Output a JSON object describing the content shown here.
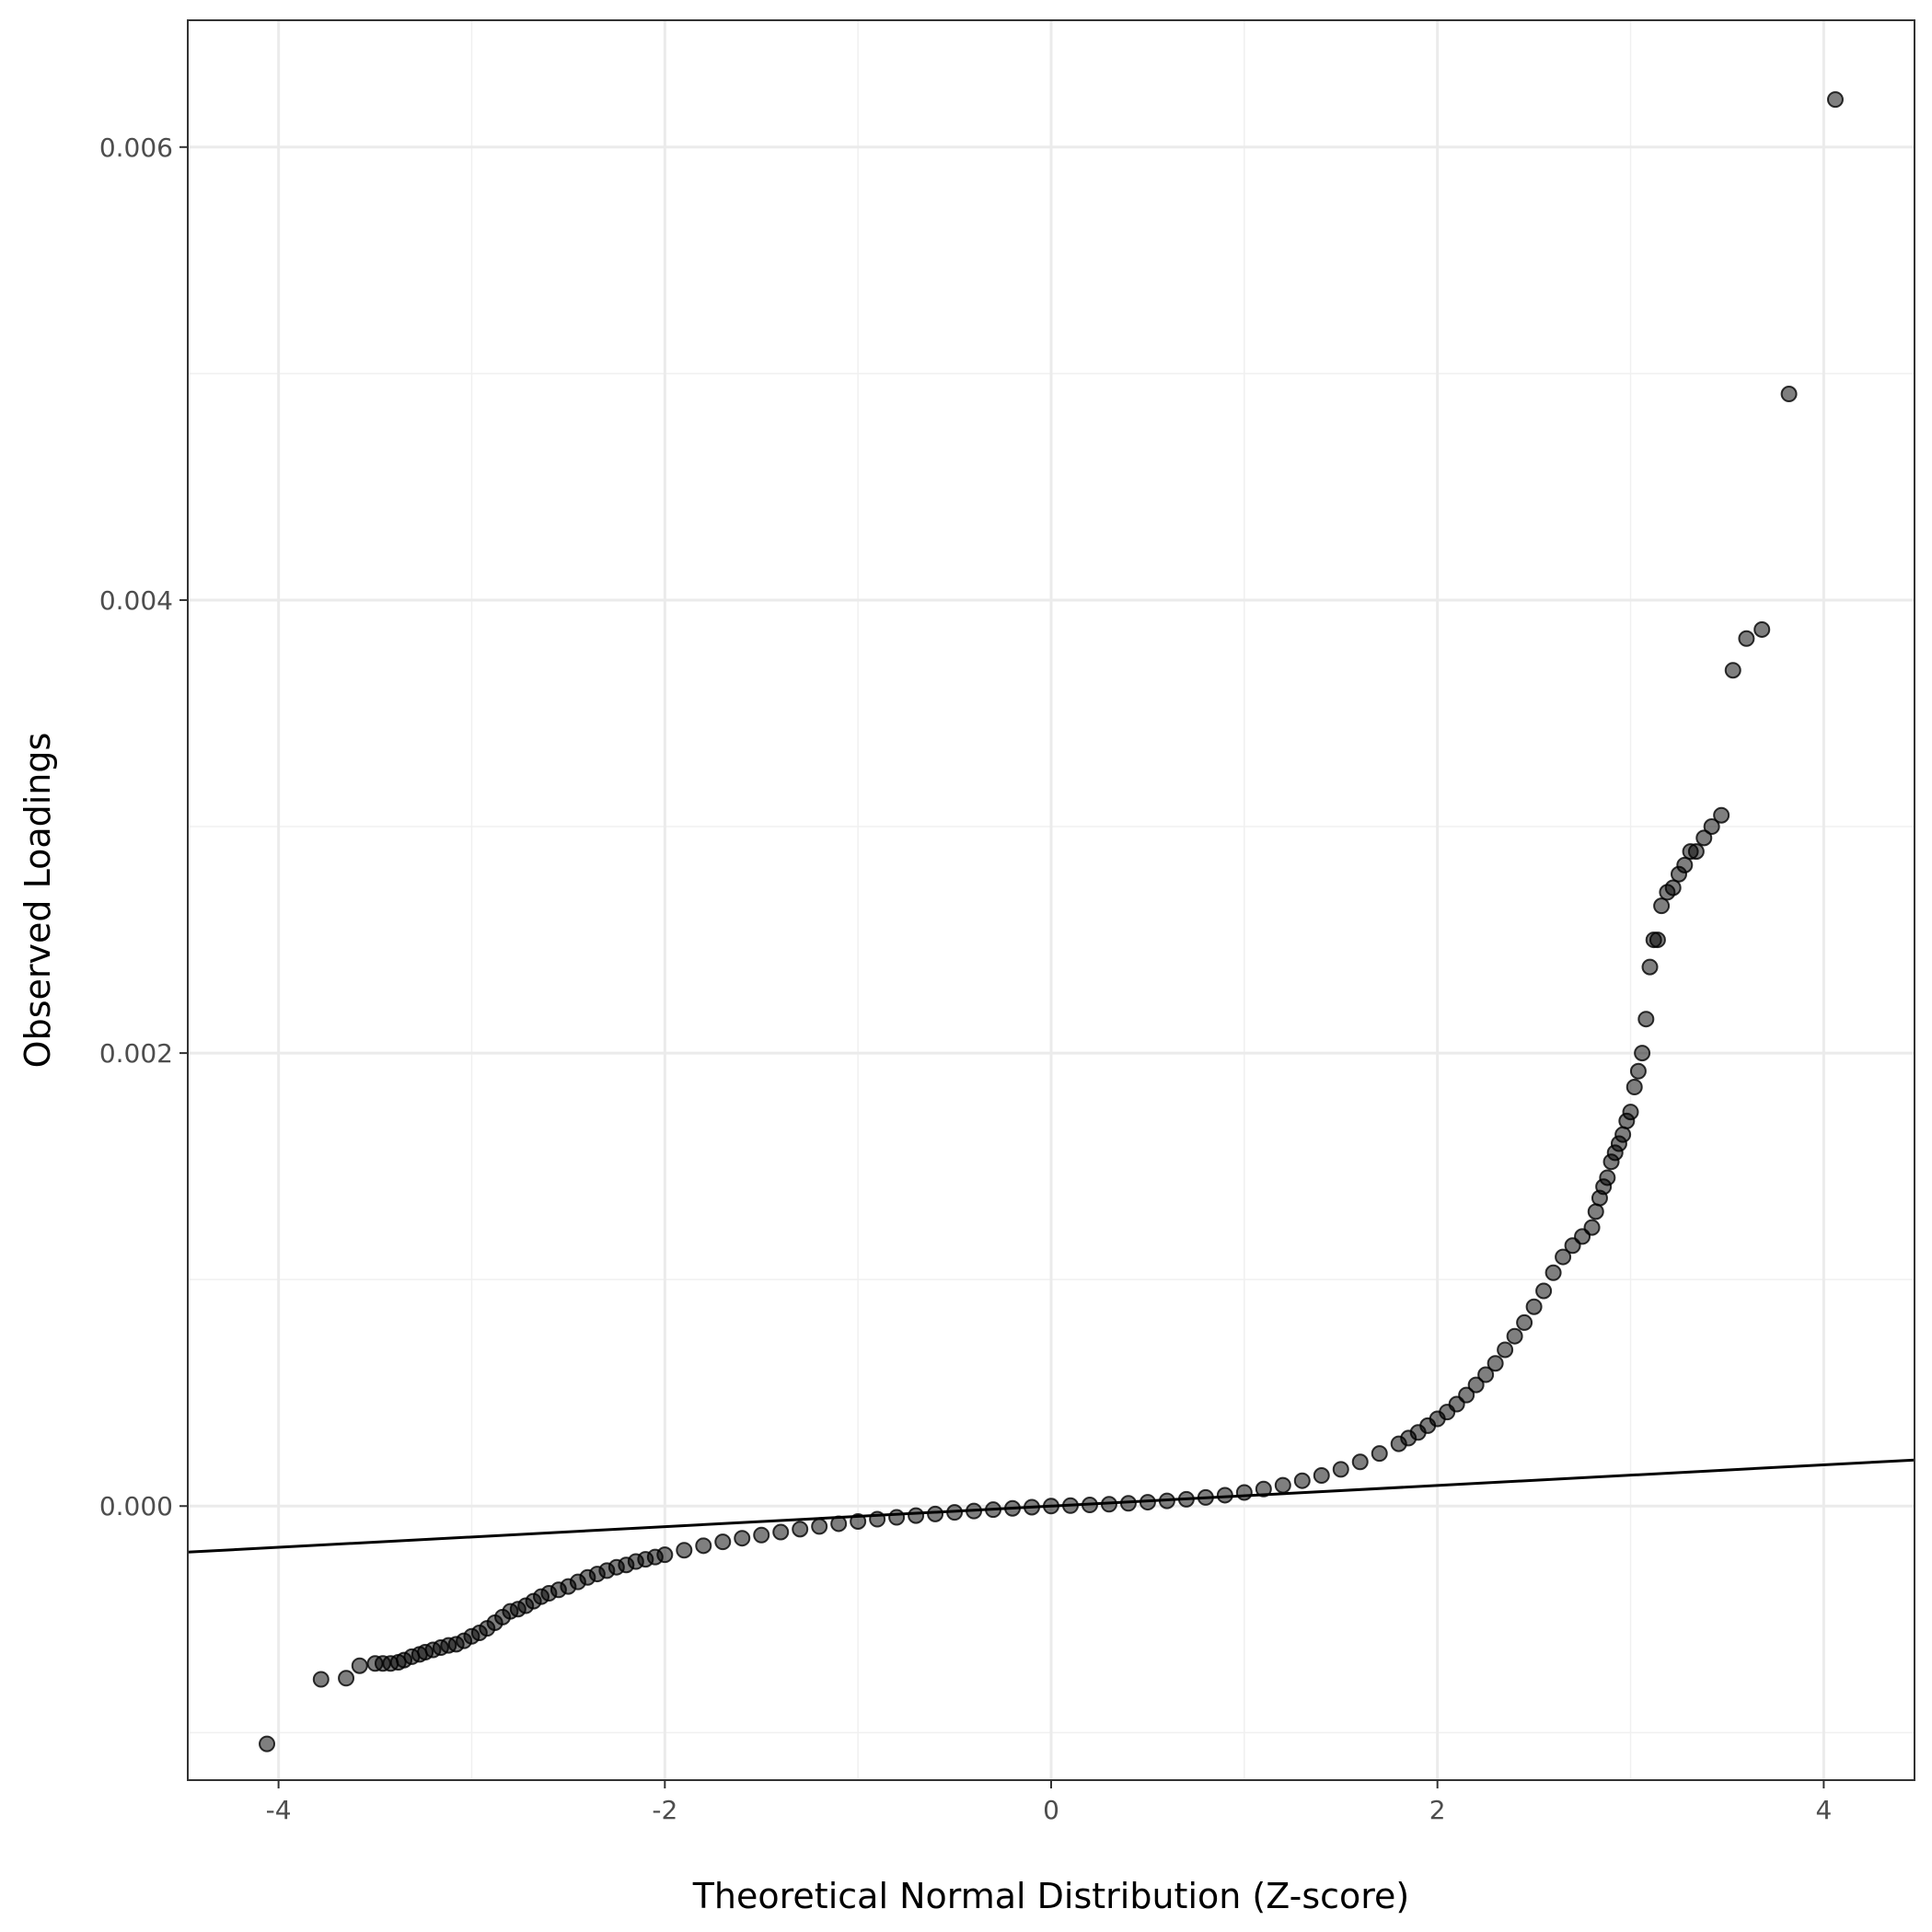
{
  "chart_data": {
    "type": "scatter",
    "title": "",
    "xlabel": "Theoretical Normal Distribution (Z-score)",
    "ylabel": "Observed Loadings",
    "xlim": [
      -4.47,
      4.47
    ],
    "ylim": [
      -0.00121,
      0.00656
    ],
    "x_ticks": [
      -4,
      -2,
      0,
      2,
      4
    ],
    "x_tick_labels": [
      "-4",
      "-2",
      "0",
      "2",
      "4"
    ],
    "y_ticks": [
      0.0,
      0.002,
      0.004,
      0.006
    ],
    "y_tick_labels": [
      "0.000",
      "0.002",
      "0.004",
      "0.006"
    ],
    "grid": true,
    "reference_line": {
      "slope": 4.55e-05,
      "intercept": 0.0
    },
    "point_color": "#000000",
    "point_alpha": 0.5,
    "points": [
      [
        -4.06,
        -0.00105
      ],
      [
        -3.78,
        -0.000765
      ],
      [
        -3.65,
        -0.00076
      ],
      [
        -3.58,
        -0.000705
      ],
      [
        -3.5,
        -0.000695
      ],
      [
        -3.46,
        -0.000695
      ],
      [
        -3.42,
        -0.000695
      ],
      [
        -3.38,
        -0.00069
      ],
      [
        -3.35,
        -0.00068
      ],
      [
        -3.31,
        -0.000665
      ],
      [
        -3.27,
        -0.000655
      ],
      [
        -3.24,
        -0.000645
      ],
      [
        -3.2,
        -0.000635
      ],
      [
        -3.16,
        -0.000625
      ],
      [
        -3.12,
        -0.000615
      ],
      [
        -3.08,
        -0.00061
      ],
      [
        -3.04,
        -0.000595
      ],
      [
        -3.0,
        -0.000575
      ],
      [
        -2.96,
        -0.00056
      ],
      [
        -2.92,
        -0.00054
      ],
      [
        -2.88,
        -0.000515
      ],
      [
        -2.84,
        -0.00049
      ],
      [
        -2.8,
        -0.000465
      ],
      [
        -2.76,
        -0.000455
      ],
      [
        -2.72,
        -0.00044
      ],
      [
        -2.68,
        -0.00042
      ],
      [
        -2.64,
        -0.0004
      ],
      [
        -2.6,
        -0.000385
      ],
      [
        -2.55,
        -0.00037
      ],
      [
        -2.5,
        -0.000355
      ],
      [
        -2.45,
        -0.000335
      ],
      [
        -2.4,
        -0.000315
      ],
      [
        -2.35,
        -0.0003
      ],
      [
        -2.3,
        -0.000285
      ],
      [
        -2.25,
        -0.00027
      ],
      [
        -2.2,
        -0.00026
      ],
      [
        -2.15,
        -0.000245
      ],
      [
        -2.1,
        -0.000235
      ],
      [
        -2.05,
        -0.000225
      ],
      [
        -2.0,
        -0.000215
      ],
      [
        -1.9,
        -0.000195
      ],
      [
        -1.8,
        -0.000175
      ],
      [
        -1.7,
        -0.000158
      ],
      [
        -1.6,
        -0.000142
      ],
      [
        -1.5,
        -0.000128
      ],
      [
        -1.4,
        -0.000115
      ],
      [
        -1.3,
        -0.000102
      ],
      [
        -1.2,
        -9e-05
      ],
      [
        -1.1,
        -7.8e-05
      ],
      [
        -1.0,
        -6.8e-05
      ],
      [
        -0.9,
        -5.8e-05
      ],
      [
        -0.8,
        -5e-05
      ],
      [
        -0.7,
        -4.2e-05
      ],
      [
        -0.6,
        -3.5e-05
      ],
      [
        -0.5,
        -2.8e-05
      ],
      [
        -0.4,
        -2.2e-05
      ],
      [
        -0.3,
        -1.6e-05
      ],
      [
        -0.2,
        -1e-05
      ],
      [
        -0.1,
        -5e-06
      ],
      [
        0.0,
        0.0
      ],
      [
        0.1,
        2e-06
      ],
      [
        0.2,
        5e-06
      ],
      [
        0.3,
        8e-06
      ],
      [
        0.4,
        1.2e-05
      ],
      [
        0.5,
        1.7e-05
      ],
      [
        0.6,
        2.3e-05
      ],
      [
        0.7,
        3e-05
      ],
      [
        0.8,
        3.8e-05
      ],
      [
        0.9,
        4.8e-05
      ],
      [
        1.0,
        6e-05
      ],
      [
        1.1,
        7.5e-05
      ],
      [
        1.2,
        9.2e-05
      ],
      [
        1.3,
        0.000112
      ],
      [
        1.4,
        0.000135
      ],
      [
        1.5,
        0.000162
      ],
      [
        1.6,
        0.000195
      ],
      [
        1.7,
        0.000232
      ],
      [
        1.8,
        0.000275
      ],
      [
        1.85,
        0.0003
      ],
      [
        1.9,
        0.000325
      ],
      [
        1.95,
        0.000355
      ],
      [
        2.0,
        0.000385
      ],
      [
        2.05,
        0.000415
      ],
      [
        2.1,
        0.00045
      ],
      [
        2.15,
        0.00049
      ],
      [
        2.2,
        0.000535
      ],
      [
        2.25,
        0.00058
      ],
      [
        2.3,
        0.00063
      ],
      [
        2.35,
        0.00069
      ],
      [
        2.4,
        0.00075
      ],
      [
        2.45,
        0.00081
      ],
      [
        2.5,
        0.00088
      ],
      [
        2.55,
        0.00095
      ],
      [
        2.6,
        0.00103
      ],
      [
        2.65,
        0.0011
      ],
      [
        2.7,
        0.00115
      ],
      [
        2.75,
        0.00119
      ],
      [
        2.8,
        0.00123
      ],
      [
        2.82,
        0.0013
      ],
      [
        2.84,
        0.00136
      ],
      [
        2.86,
        0.00141
      ],
      [
        2.88,
        0.00145
      ],
      [
        2.9,
        0.00152
      ],
      [
        2.92,
        0.00156
      ],
      [
        2.94,
        0.0016
      ],
      [
        2.96,
        0.00164
      ],
      [
        2.98,
        0.0017
      ],
      [
        3.0,
        0.00174
      ],
      [
        3.02,
        0.00185
      ],
      [
        3.04,
        0.00192
      ],
      [
        3.06,
        0.002
      ],
      [
        3.08,
        0.00215
      ],
      [
        3.1,
        0.00238
      ],
      [
        3.12,
        0.0025
      ],
      [
        3.14,
        0.0025
      ],
      [
        3.16,
        0.00265
      ],
      [
        3.19,
        0.00271
      ],
      [
        3.22,
        0.00273
      ],
      [
        3.25,
        0.00279
      ],
      [
        3.28,
        0.00283
      ],
      [
        3.31,
        0.00289
      ],
      [
        3.34,
        0.00289
      ],
      [
        3.38,
        0.00295
      ],
      [
        3.42,
        0.003
      ],
      [
        3.47,
        0.00305
      ],
      [
        3.53,
        0.00369
      ],
      [
        3.6,
        0.00383
      ],
      [
        3.68,
        0.00387
      ],
      [
        3.82,
        0.00491
      ],
      [
        4.06,
        0.00621
      ]
    ]
  }
}
